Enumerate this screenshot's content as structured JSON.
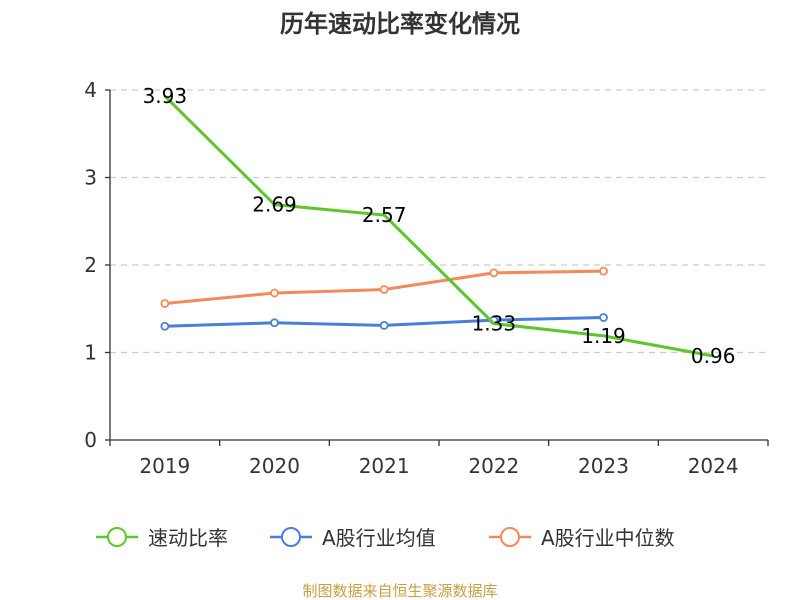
{
  "chart_data": {
    "type": "line",
    "title": "历年速动比率变化情况",
    "categories": [
      "2019",
      "2020",
      "2021",
      "2022",
      "2023",
      "2024"
    ],
    "yticks": [
      "0",
      "1",
      "2",
      "3",
      "4"
    ],
    "ylim": [
      0,
      4
    ],
    "grid": "horizontal-dashed",
    "legend_position": "bottom",
    "series": [
      {
        "name": "速动比率",
        "color": "#5cc62c",
        "values": [
          3.93,
          2.69,
          2.57,
          1.33,
          1.19,
          0.96
        ],
        "labels": [
          "3.93",
          "2.69",
          "2.57",
          "1.33",
          "1.19",
          "0.96"
        ]
      },
      {
        "name": "A股行业均值",
        "color": "#4a7fd9",
        "values": [
          1.3,
          1.34,
          1.31,
          1.37,
          1.4,
          null
        ]
      },
      {
        "name": "A股行业中位数",
        "color": "#f5895a",
        "values": [
          1.56,
          1.68,
          1.72,
          1.91,
          1.93,
          null
        ]
      }
    ],
    "source": "制图数据来自恒生聚源数据库"
  }
}
